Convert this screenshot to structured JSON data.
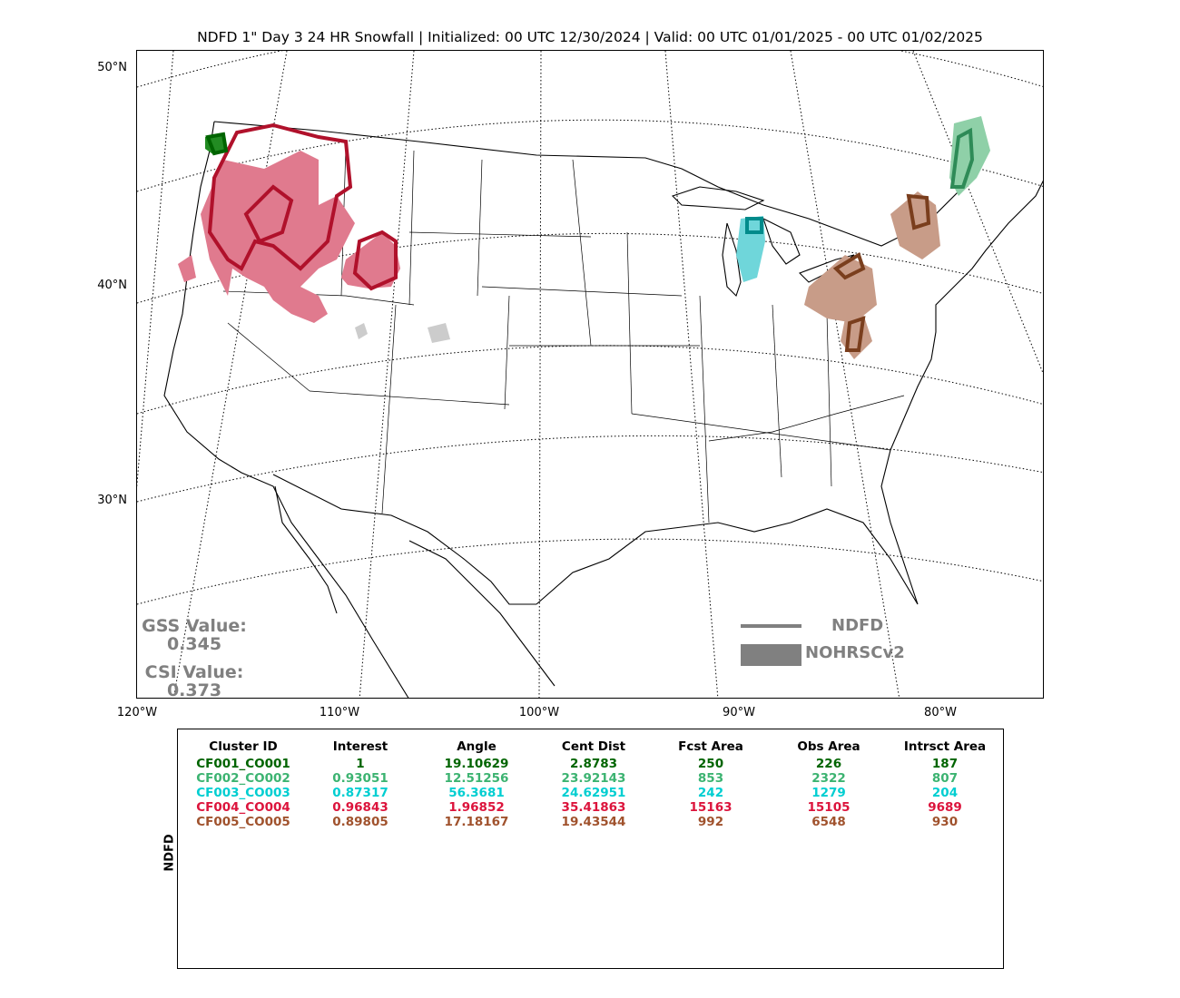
{
  "title": "NDFD 1\" Day 3 24 HR Snowfall | Initialized: 00 UTC 12/30/2024 | Valid: 00 UTC 01/01/2025 - 00 UTC 01/02/2025",
  "map": {
    "lat_labels": [
      "50°N",
      "40°N",
      "30°N"
    ],
    "lon_labels": [
      "120°W",
      "110°W",
      "100°W",
      "90°W",
      "80°W"
    ]
  },
  "scores": {
    "gss_label": "GSS Value:",
    "gss_value": "0.345",
    "csi_label": "CSI Value:",
    "csi_value": "0.373"
  },
  "legend": {
    "forecast": "NDFD",
    "observed": "NOHRSCv2",
    "forecast_color": "#808080",
    "observed_color": "#808080"
  },
  "table": {
    "ylabel": "NDFD",
    "headers": [
      "Cluster ID",
      "Interest",
      "Angle",
      "Cent Dist",
      "Fcst Area",
      "Obs Area",
      "Intrsct Area"
    ],
    "rows": [
      {
        "cells": [
          "CF001_CO001",
          "1",
          "19.10629",
          "2.8783",
          "250",
          "226",
          "187"
        ],
        "color": "#006400"
      },
      {
        "cells": [
          "CF002_CO002",
          "0.93051",
          "12.51256",
          "23.92143",
          "853",
          "2322",
          "807"
        ],
        "color": "#3cb371"
      },
      {
        "cells": [
          "CF003_CO003",
          "0.87317",
          "56.3681",
          "24.62951",
          "242",
          "1279",
          "204"
        ],
        "color": "#00ced1"
      },
      {
        "cells": [
          "CF004_CO004",
          "0.96843",
          "1.96852",
          "35.41863",
          "15163",
          "15105",
          "9689"
        ],
        "color": "#dc143c"
      },
      {
        "cells": [
          "CF005_CO005",
          "0.89805",
          "17.18167",
          "19.43544",
          "992",
          "6548",
          "930"
        ],
        "color": "#a0522d"
      }
    ]
  }
}
